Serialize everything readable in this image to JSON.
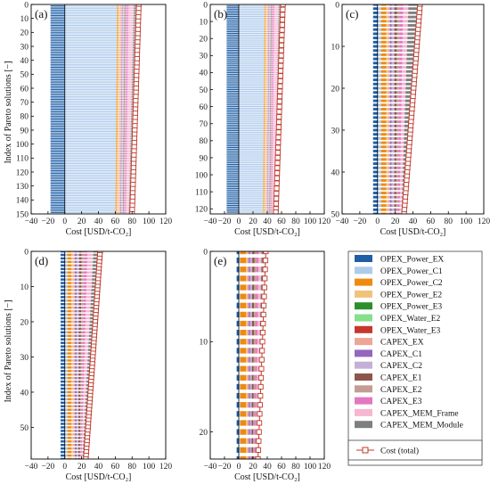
{
  "figure": {
    "y_axis_label": "Index of Pareto solutions [−]",
    "x_axis_label": "Cost [USD/t-CO₂]",
    "total_legend_label": "Cost (total)"
  },
  "legend_items": [
    {
      "label": "OPEX_Power_EX",
      "color": "#1f5fa6"
    },
    {
      "label": "OPEX_Power_C1",
      "color": "#aecbec"
    },
    {
      "label": "OPEX_Power_C2",
      "color": "#ee8a12"
    },
    {
      "label": "OPEX_Power_E2",
      "color": "#f2c27d"
    },
    {
      "label": "OPEX_Power_E3",
      "color": "#2b8f2b"
    },
    {
      "label": "OPEX_Water_E2",
      "color": "#86df8b"
    },
    {
      "label": "OPEX_Water_E3",
      "color": "#c8372d"
    },
    {
      "label": "CAPEX_EX",
      "color": "#eda598"
    },
    {
      "label": "CAPEX_C1",
      "color": "#9467bd"
    },
    {
      "label": "CAPEX_C2",
      "color": "#c5b0d5"
    },
    {
      "label": "CAPEX_E1",
      "color": "#8c564b"
    },
    {
      "label": "CAPEX_E2",
      "color": "#c49c94"
    },
    {
      "label": "CAPEX_E3",
      "color": "#e377c2"
    },
    {
      "label": "CAPEX_MEM_Frame",
      "color": "#f7b6d2"
    },
    {
      "label": "CAPEX_MEM_Module",
      "color": "#7f7f7f"
    }
  ],
  "total_line_color": "#c0392b",
  "chart_data": [
    {
      "type": "bar",
      "orientation": "horizontal",
      "stacked": true,
      "panel_label": "(a)",
      "n_solutions": 151,
      "xlabel": "Cost [USD/t-CO₂]",
      "ylabel": "Index of Pareto solutions [−]",
      "xlim": [
        -40,
        120
      ],
      "ylim": [
        150,
        0
      ],
      "xticks": [
        -40,
        -20,
        0,
        20,
        40,
        60,
        80,
        100,
        120
      ],
      "yticks": [
        0,
        10,
        20,
        30,
        40,
        50,
        60,
        70,
        80,
        90,
        100,
        110,
        120,
        130,
        140,
        150
      ],
      "segments_first": [
        [
          "OPEX_Power_EX",
          -17
        ],
        [
          "OPEX_Power_C1",
          62
        ],
        [
          "OPEX_Power_C2",
          2
        ],
        [
          "OPEX_Power_E2",
          2
        ],
        [
          "CAPEX_EX",
          2
        ],
        [
          "CAPEX_C1",
          1
        ],
        [
          "CAPEX_C2",
          2
        ],
        [
          "CAPEX_E1",
          1
        ],
        [
          "CAPEX_E2",
          1
        ],
        [
          "CAPEX_E3",
          3
        ],
        [
          "CAPEX_MEM_Frame",
          6
        ],
        [
          "CAPEX_MEM_Module",
          9
        ]
      ],
      "segments_last": [
        [
          "OPEX_Power_EX",
          -17
        ],
        [
          "OPEX_Power_C1",
          60
        ],
        [
          "OPEX_Power_C2",
          2
        ],
        [
          "OPEX_Power_E2",
          2
        ],
        [
          "CAPEX_EX",
          2
        ],
        [
          "CAPEX_C1",
          1
        ],
        [
          "CAPEX_C2",
          2
        ],
        [
          "CAPEX_E1",
          1
        ],
        [
          "CAPEX_E2",
          1
        ],
        [
          "CAPEX_E3",
          2
        ],
        [
          "CAPEX_MEM_Frame",
          3
        ],
        [
          "CAPEX_MEM_Module",
          6
        ]
      ],
      "total_first": 88,
      "total_last": 80,
      "marker_step": 3
    },
    {
      "type": "bar",
      "orientation": "horizontal",
      "stacked": true,
      "panel_label": "(b)",
      "n_solutions": 123,
      "xlabel": "Cost [USD/t-CO₂]",
      "xlim": [
        -40,
        120
      ],
      "ylim": [
        123,
        0
      ],
      "xticks": [
        -40,
        -20,
        0,
        20,
        40,
        60,
        80,
        100,
        120
      ],
      "yticks": [
        0,
        10,
        20,
        30,
        40,
        50,
        60,
        70,
        80,
        90,
        100,
        110,
        120
      ],
      "segments_first": [
        [
          "OPEX_Power_EX",
          -17
        ],
        [
          "OPEX_Power_C1",
          36
        ],
        [
          "OPEX_Power_C2",
          2
        ],
        [
          "OPEX_Power_E2",
          2
        ],
        [
          "CAPEX_EX",
          2
        ],
        [
          "CAPEX_C1",
          1
        ],
        [
          "CAPEX_C2",
          2
        ],
        [
          "CAPEX_E1",
          1
        ],
        [
          "CAPEX_E2",
          1
        ],
        [
          "CAPEX_E3",
          3
        ],
        [
          "CAPEX_MEM_Frame",
          6
        ],
        [
          "CAPEX_MEM_Module",
          9
        ]
      ],
      "segments_last": [
        [
          "OPEX_Power_EX",
          -17
        ],
        [
          "OPEX_Power_C1",
          34
        ],
        [
          "OPEX_Power_C2",
          2
        ],
        [
          "OPEX_Power_E2",
          2
        ],
        [
          "CAPEX_EX",
          2
        ],
        [
          "CAPEX_C1",
          1
        ],
        [
          "CAPEX_C2",
          2
        ],
        [
          "CAPEX_E1",
          1
        ],
        [
          "CAPEX_E2",
          1
        ],
        [
          "CAPEX_E3",
          2
        ],
        [
          "CAPEX_MEM_Frame",
          3
        ],
        [
          "CAPEX_MEM_Module",
          6
        ]
      ],
      "total_first": 62,
      "total_last": 52,
      "marker_step": 3
    },
    {
      "type": "bar",
      "orientation": "horizontal",
      "stacked": true,
      "panel_label": "(c)",
      "n_solutions": 51,
      "xlabel": "Cost [USD/t-CO₂]",
      "xlim": [
        -40,
        120
      ],
      "ylim": [
        50,
        0
      ],
      "xticks": [
        -40,
        -20,
        0,
        20,
        40,
        60,
        80,
        100,
        120
      ],
      "yticks": [
        0,
        10,
        20,
        30,
        40,
        50
      ],
      "segments_first": [
        [
          "OPEX_Power_EX",
          -5
        ],
        [
          "OPEX_Power_C1",
          4
        ],
        [
          "OPEX_Power_C2",
          6
        ],
        [
          "OPEX_Power_E2",
          2
        ],
        [
          "CAPEX_EX",
          2
        ],
        [
          "CAPEX_C1",
          2
        ],
        [
          "CAPEX_C2",
          3
        ],
        [
          "CAPEX_E1",
          3
        ],
        [
          "CAPEX_E2",
          3
        ],
        [
          "CAPEX_E3",
          4
        ],
        [
          "CAPEX_MEM_Frame",
          6
        ],
        [
          "CAPEX_MEM_Module",
          10
        ]
      ],
      "segments_last": [
        [
          "OPEX_Power_EX",
          -5
        ],
        [
          "OPEX_Power_C1",
          4
        ],
        [
          "OPEX_Power_C2",
          6
        ],
        [
          "OPEX_Power_E2",
          2
        ],
        [
          "CAPEX_EX",
          2
        ],
        [
          "CAPEX_C1",
          2
        ],
        [
          "CAPEX_C2",
          3
        ],
        [
          "CAPEX_E1",
          2
        ],
        [
          "CAPEX_E2",
          2
        ],
        [
          "CAPEX_E3",
          2
        ],
        [
          "CAPEX_MEM_Frame",
          2
        ],
        [
          "CAPEX_MEM_Module",
          3
        ]
      ],
      "total_first": 48,
      "total_last": 30,
      "marker_step": 1
    },
    {
      "type": "bar",
      "orientation": "horizontal",
      "stacked": true,
      "panel_label": "(d)",
      "n_solutions": 60,
      "xlabel": "Cost [USD/t-CO₂]",
      "ylabel": "Index of Pareto solutions [−]",
      "xlim": [
        -40,
        120
      ],
      "ylim": [
        59,
        0
      ],
      "xticks": [
        -40,
        -20,
        0,
        20,
        40,
        60,
        80,
        100,
        120
      ],
      "yticks": [
        0,
        10,
        20,
        30,
        40,
        50
      ],
      "segments_first": [
        [
          "OPEX_Power_EX",
          -5
        ],
        [
          "OPEX_Power_C1",
          3
        ],
        [
          "OPEX_Power_C2",
          5
        ],
        [
          "OPEX_Power_E2",
          2
        ],
        [
          "CAPEX_EX",
          2
        ],
        [
          "CAPEX_C1",
          2
        ],
        [
          "CAPEX_C2",
          3
        ],
        [
          "CAPEX_E1",
          3
        ],
        [
          "CAPEX_E2",
          3
        ],
        [
          "CAPEX_E3",
          4
        ],
        [
          "CAPEX_MEM_Frame",
          7
        ],
        [
          "CAPEX_MEM_Module",
          9
        ]
      ],
      "segments_last": [
        [
          "OPEX_Power_EX",
          -5
        ],
        [
          "OPEX_Power_C1",
          3
        ],
        [
          "OPEX_Power_C2",
          5
        ],
        [
          "OPEX_Power_E2",
          2
        ],
        [
          "CAPEX_EX",
          2
        ],
        [
          "CAPEX_C1",
          2
        ],
        [
          "CAPEX_C2",
          2
        ],
        [
          "CAPEX_E1",
          2
        ],
        [
          "CAPEX_E2",
          1
        ],
        [
          "CAPEX_E3",
          1
        ],
        [
          "CAPEX_MEM_Frame",
          1
        ],
        [
          "CAPEX_MEM_Module",
          2
        ]
      ],
      "total_first": 42,
      "total_last": 25,
      "marker_step": 1
    },
    {
      "type": "bar",
      "orientation": "horizontal",
      "stacked": true,
      "panel_label": "(e)",
      "n_solutions": 24,
      "xlabel": "Cost [USD/t-CO₂]",
      "xlim": [
        -40,
        120
      ],
      "ylim": [
        23,
        0
      ],
      "xticks": [
        -40,
        -20,
        0,
        20,
        40,
        60,
        80,
        100,
        120
      ],
      "yticks": [
        0,
        10,
        20
      ],
      "segments_first": [
        [
          "OPEX_Power_EX",
          -3
        ],
        [
          "OPEX_Power_C1",
          2
        ],
        [
          "OPEX_Power_C2",
          8
        ],
        [
          "OPEX_Power_E2",
          2
        ],
        [
          "CAPEX_EX",
          2
        ],
        [
          "CAPEX_C1",
          2
        ],
        [
          "CAPEX_C2",
          3
        ],
        [
          "CAPEX_E1",
          3
        ],
        [
          "CAPEX_E2",
          3
        ],
        [
          "CAPEX_E3",
          3
        ],
        [
          "CAPEX_MEM_Frame",
          4
        ],
        [
          "CAPEX_MEM_Module",
          6
        ]
      ],
      "segments_last": [
        [
          "OPEX_Power_EX",
          -3
        ],
        [
          "OPEX_Power_C1",
          2
        ],
        [
          "OPEX_Power_C2",
          8
        ],
        [
          "OPEX_Power_E2",
          2
        ],
        [
          "CAPEX_EX",
          2
        ],
        [
          "CAPEX_C1",
          2
        ],
        [
          "CAPEX_C2",
          2
        ],
        [
          "CAPEX_E1",
          2
        ],
        [
          "CAPEX_E2",
          2
        ],
        [
          "CAPEX_E3",
          2
        ],
        [
          "CAPEX_MEM_Frame",
          2
        ],
        [
          "CAPEX_MEM_Module",
          2
        ]
      ],
      "total_first": 38,
      "total_last": 27,
      "marker_step": 1
    }
  ]
}
